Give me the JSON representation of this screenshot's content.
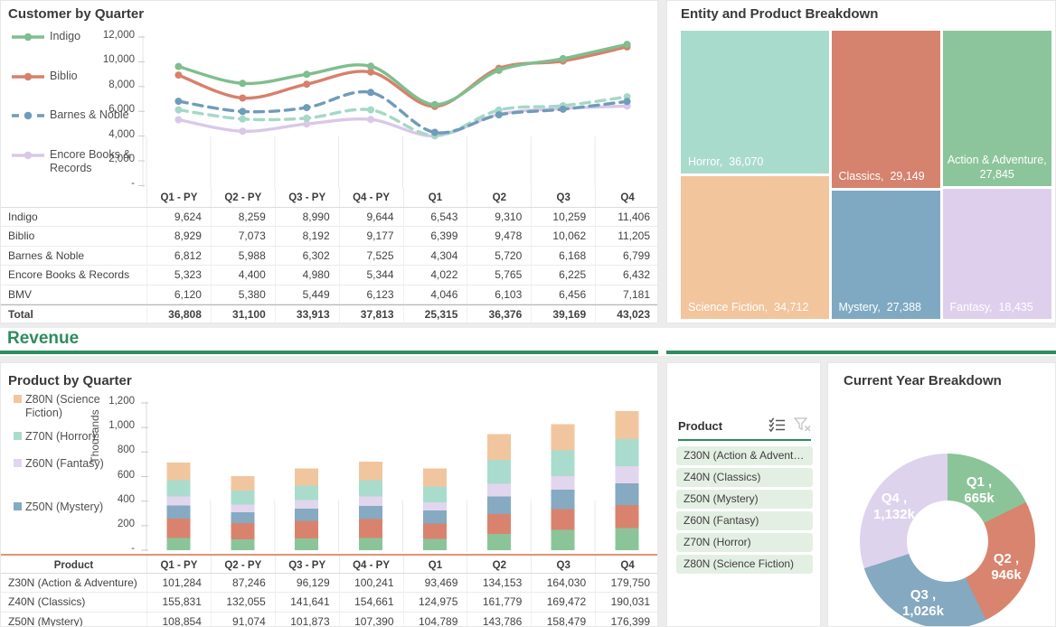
{
  "page": {
    "background": "#ececec",
    "accent_green": "#2e8c5f"
  },
  "customer_panel": {
    "title": "Customer by Quarter",
    "y_ticks": [
      "12,000",
      "10,000",
      "8,000",
      "6,000",
      "4,000",
      "2,000",
      "-"
    ],
    "x_labels": [
      "Q1 - PY",
      "Q2 - PY",
      "Q3 - PY",
      "Q4 - PY",
      "Q1",
      "Q2",
      "Q3",
      "Q4"
    ],
    "legend": [
      {
        "label": "Indigo",
        "color": "#7fbe8e",
        "dash": false
      },
      {
        "label": "Biblio",
        "color": "#d8806b",
        "dash": false
      },
      {
        "label": "Barnes & Noble",
        "color": "#6f9cba",
        "dash": true
      },
      {
        "label": "Encore Books & Records",
        "color": "#d9c8e9",
        "dash": false
      }
    ],
    "table": {
      "rows": [
        {
          "label": "Indigo",
          "bold": false,
          "values": [
            "9,624",
            "8,259",
            "8,990",
            "9,644",
            "6,543",
            "9,310",
            "10,259",
            "11,406"
          ]
        },
        {
          "label": "Biblio",
          "bold": false,
          "values": [
            "8,929",
            "7,073",
            "8,192",
            "9,177",
            "6,399",
            "9,478",
            "10,062",
            "11,205"
          ]
        },
        {
          "label": "Barnes & Noble",
          "bold": false,
          "values": [
            "6,812",
            "5,988",
            "6,302",
            "7,525",
            "4,304",
            "5,720",
            "6,168",
            "6,799"
          ]
        },
        {
          "label": "Encore Books & Records",
          "bold": false,
          "values": [
            "5,323",
            "4,400",
            "4,980",
            "5,344",
            "4,022",
            "5,765",
            "6,225",
            "6,432"
          ]
        },
        {
          "label": "BMV",
          "bold": false,
          "values": [
            "6,120",
            "5,380",
            "5,449",
            "6,123",
            "4,046",
            "6,103",
            "6,456",
            "7,181"
          ]
        },
        {
          "label": "Total",
          "bold": true,
          "values": [
            "36,808",
            "31,100",
            "33,913",
            "37,813",
            "25,315",
            "36,376",
            "39,169",
            "43,023"
          ]
        }
      ]
    }
  },
  "treemap_panel": {
    "title": "Entity and Product Breakdown"
  },
  "revenue": {
    "label": "Revenue"
  },
  "product_panel": {
    "title": "Product by Quarter",
    "ylabel": "Thousands",
    "y_ticks": [
      "1,200",
      "1,000",
      "800",
      "600",
      "400",
      "200",
      "-"
    ],
    "x_labels": [
      "Q1 - PY",
      "Q2 - PY",
      "Q3 - PY",
      "Q4 - PY",
      "Q1",
      "Q2",
      "Q3",
      "Q4"
    ],
    "legend": [
      {
        "label": "Z80N (Science Fiction)",
        "color": "#f1c69e"
      },
      {
        "label": "Z70N (Horror)",
        "color": "#a9dccd"
      },
      {
        "label": "Z60N (Fantasy)",
        "color": "#e2d5ee"
      },
      {
        "label": "Z50N (Mystery)",
        "color": "#85aac2"
      }
    ],
    "table": {
      "header_label": "Product",
      "rows": [
        {
          "label": "Z30N (Action & Adventure)",
          "bold": false,
          "values": [
            "101,284",
            "87,246",
            "96,129",
            "100,241",
            "93,469",
            "134,153",
            "164,030",
            "179,750"
          ]
        },
        {
          "label": "Z40N (Classics)",
          "bold": false,
          "values": [
            "155,831",
            "132,055",
            "141,641",
            "154,661",
            "124,975",
            "161,779",
            "169,472",
            "190,031"
          ]
        },
        {
          "label": "Z50N (Mystery)",
          "bold": false,
          "values": [
            "108,854",
            "91,074",
            "101,873",
            "107,390",
            "104,789",
            "143,786",
            "158,479",
            "176,399"
          ]
        }
      ]
    }
  },
  "slicer": {
    "title": "Product",
    "icons": [
      "multi-select-icon",
      "clear-filter-icon"
    ],
    "items": [
      "Z30N (Action & Adventure)",
      "Z40N (Classics)",
      "Z50N (Mystery)",
      "Z60N (Fantasy)",
      "Z70N (Horror)",
      "Z80N (Science Fiction)"
    ]
  },
  "donut_panel": {
    "title": "Current Year Breakdown"
  },
  "chart_data": [
    {
      "type": "line",
      "title": "Customer by Quarter",
      "categories": [
        "Q1 - PY",
        "Q2 - PY",
        "Q3 - PY",
        "Q4 - PY",
        "Q1",
        "Q2",
        "Q3",
        "Q4"
      ],
      "ylim": [
        0,
        12000
      ],
      "legend_position": "left",
      "grid": "vertical-partial",
      "series": [
        {
          "name": "Encore Books & Records",
          "color": "#d9c8e9",
          "dash": false,
          "values": [
            5323,
            4400,
            4980,
            5344,
            4022,
            5765,
            6225,
            6432
          ]
        },
        {
          "name": "BMV",
          "color": "#a5d8c5",
          "dash": true,
          "values": [
            6120,
            5380,
            5449,
            6123,
            4046,
            6103,
            6456,
            7181
          ]
        },
        {
          "name": "Barnes & Noble",
          "color": "#6f9cba",
          "dash": true,
          "values": [
            6812,
            5988,
            6302,
            7525,
            4304,
            5720,
            6168,
            6799
          ]
        },
        {
          "name": "Biblio",
          "color": "#d8806b",
          "dash": false,
          "values": [
            8929,
            7073,
            8192,
            9177,
            6399,
            9478,
            10062,
            11205
          ]
        },
        {
          "name": "Indigo",
          "color": "#7fbe8e",
          "dash": false,
          "values": [
            9624,
            8259,
            8990,
            9644,
            6543,
            9310,
            10259,
            11406
          ]
        }
      ]
    },
    {
      "type": "treemap",
      "title": "Entity and Product Breakdown",
      "tiles": [
        {
          "name": "Horror",
          "value": 36070,
          "value_label": "36,070",
          "color": "#a9dbcd",
          "centered": false
        },
        {
          "name": "Classics",
          "value": 29149,
          "value_label": "29,149",
          "color": "#d5826e",
          "centered": false
        },
        {
          "name": "Action & Adventure",
          "value": 27845,
          "value_label": "27,845",
          "color": "#8cc59b",
          "centered": true
        },
        {
          "name": "Science Fiction",
          "value": 34712,
          "value_label": "34,712",
          "color": "#f2c59d",
          "centered": false
        },
        {
          "name": "Mystery",
          "value": 27388,
          "value_label": "27,388",
          "color": "#7fa9c3",
          "centered": false
        },
        {
          "name": "Fantasy",
          "value": 18435,
          "value_label": "18,435",
          "color": "#ded0ec",
          "centered": false
        }
      ]
    },
    {
      "type": "bar",
      "stacked": true,
      "title": "Product by Quarter",
      "ylabel": "Thousands",
      "unit": "thousands",
      "ylim": [
        0,
        1200
      ],
      "categories": [
        "Q1 - PY",
        "Q2 - PY",
        "Q3 - PY",
        "Q4 - PY",
        "Q1",
        "Q2",
        "Q3",
        "Q4"
      ],
      "series": [
        {
          "name": "Z30N (Action & Adventure)",
          "color": "#8cc49a",
          "values": [
            101.284,
            87.246,
            96.129,
            100.241,
            93.469,
            134.153,
            164.03,
            179.75
          ]
        },
        {
          "name": "Z40N (Classics)",
          "color": "#d9836f",
          "values": [
            155.831,
            132.055,
            141.641,
            154.661,
            124.975,
            161.779,
            169.472,
            190.031
          ]
        },
        {
          "name": "Z50N (Mystery)",
          "color": "#85aac2",
          "values": [
            108.854,
            91.074,
            101.873,
            107.39,
            104.789,
            143.786,
            158.479,
            176.399
          ]
        },
        {
          "name": "Z60N (Fantasy)",
          "color": "#e2d5ee",
          "values": [
            74,
            62,
            68,
            75,
            68,
            100,
            112,
            137
          ]
        },
        {
          "name": "Z70N (Horror)",
          "color": "#a9dccd",
          "values": [
            130,
            112,
            120,
            133,
            128,
            198,
            210,
            224
          ]
        },
        {
          "name": "Z80N (Science Fiction)",
          "color": "#f1c69e",
          "values": [
            143,
            121,
            138,
            150,
            146,
            208,
            212,
            225
          ]
        }
      ]
    },
    {
      "type": "pie",
      "donut": true,
      "title": "Current Year Breakdown",
      "slices": [
        {
          "label": "Q1 ,",
          "value_label": "665k",
          "value": 665,
          "color": "#8cc49a"
        },
        {
          "label": "Q2 ,",
          "value_label": "946k",
          "value": 946,
          "color": "#d8846f"
        },
        {
          "label": "Q3 ,",
          "value_label": "1,026k",
          "value": 1026,
          "color": "#84a9c1"
        },
        {
          "label": "Q4 ,",
          "value_label": "1,132k",
          "value": 1132,
          "color": "#ded3ec"
        }
      ]
    }
  ]
}
